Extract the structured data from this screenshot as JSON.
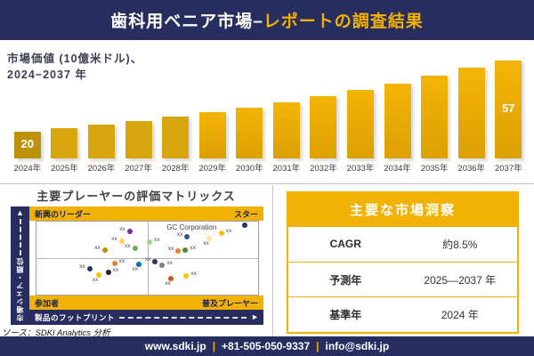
{
  "colors": {
    "navy": "#272d5f",
    "gold": "#f2b205",
    "bar_first": "#bd9109",
    "bar_early": "#d9a60f",
    "bar_late_top": "#f4b406",
    "bar_late_bottom": "#dca004"
  },
  "header": {
    "title_main": "歯科用ベニア市場–",
    "title_accent": "レポートの調査結果"
  },
  "chart": {
    "subtitle_line1": "市場価値 (10億米ドル)、",
    "subtitle_line2": "2024−2037 年"
  },
  "chart_data": [
    {
      "type": "bar",
      "title": "市場価値（10億米ドル）、2024−2037年",
      "categories": [
        "2024年",
        "2025年",
        "2026年",
        "2027年",
        "2028年",
        "2029年",
        "2030年",
        "2031年",
        "2032年",
        "2033年",
        "2034年",
        "2035年",
        "2036年",
        "2037年"
      ],
      "values": [
        20,
        21.7,
        23.5,
        25.5,
        27.7,
        30.1,
        32.6,
        35.4,
        38.4,
        41.7,
        45.2,
        49.0,
        53.2,
        57
      ],
      "shown_labels": {
        "0": "20",
        "13": "57"
      },
      "xlabel": "",
      "ylabel": "10億米ドル",
      "ylim": [
        0,
        60
      ],
      "grid": false,
      "legend": false
    },
    {
      "type": "scatter",
      "title": "主要プレーヤーの評価マトリックス",
      "xlabel": "製品のフットプリント",
      "ylabel": "市場シェア・順位",
      "points": [
        {
          "x": 42.0,
          "y": 13.0,
          "color": "#7030a0",
          "label": "xx",
          "side": "l"
        },
        {
          "x": 38.4,
          "y": 26.8,
          "color": "#ffd34d",
          "label": "xx",
          "side": "l"
        },
        {
          "x": 30.8,
          "y": 39.0,
          "color": "#bf8f00",
          "label": "xx",
          "side": "l"
        },
        {
          "x": 44.4,
          "y": 36.6,
          "color": "#70ad47",
          "label": "xx",
          "side": "l"
        },
        {
          "x": 94.0,
          "y": 5.0,
          "color": "#1f3864",
          "label": "",
          "side": "n"
        },
        {
          "x": 68.0,
          "y": 20.7,
          "color": "#2e5597",
          "label": "xx",
          "side": "l"
        },
        {
          "x": 51.0,
          "y": 28.0,
          "color": "#a9d18e",
          "label": "xx",
          "side": "r"
        },
        {
          "x": 78.0,
          "y": 23.0,
          "color": "#ffe699",
          "label": "xx",
          "side": "b"
        },
        {
          "x": 83.5,
          "y": 16.0,
          "color": "#ffc000",
          "label": "xx",
          "side": "r"
        },
        {
          "x": 64.0,
          "y": 40.0,
          "color": "#ed7d31",
          "label": "xx",
          "side": "l"
        },
        {
          "x": 67.2,
          "y": 39.0,
          "color": "#548235",
          "label": "xx",
          "side": "r"
        },
        {
          "x": 35.2,
          "y": 57.3,
          "color": "#ed7d31",
          "label": "xx",
          "side": "r"
        },
        {
          "x": 46.0,
          "y": 58.5,
          "color": "#0070c0",
          "label": "xx",
          "side": "b"
        },
        {
          "x": 24.0,
          "y": 64.6,
          "color": "#203864",
          "label": "xx",
          "side": "l"
        },
        {
          "x": 32.4,
          "y": 69.5,
          "color": "#262626",
          "label": "xx",
          "side": "r"
        },
        {
          "x": 28.0,
          "y": 73.2,
          "color": "#ffc000",
          "label": "xx",
          "side": "b"
        },
        {
          "x": 53.6,
          "y": 54.9,
          "color": "#203864",
          "label": "xx",
          "side": "l"
        },
        {
          "x": 56.8,
          "y": 59.8,
          "color": "#808080",
          "label": "xx",
          "side": "r"
        },
        {
          "x": 60.8,
          "y": 78.0,
          "color": "#c55a11",
          "label": "xx",
          "side": "b"
        },
        {
          "x": 67.6,
          "y": 74.4,
          "color": "#ffc000",
          "label": "xx",
          "side": "r"
        }
      ]
    }
  ],
  "matrix": {
    "title": "主要プレーヤーの評価マトリックス",
    "quadrants": {
      "top_left": "新興のリーダー",
      "top_right": "スター",
      "bottom_left": "参加者",
      "bottom_right": "普及プレーヤー"
    },
    "x_axis": "製品のフットプリント",
    "y_axis": "市場シェア・順位",
    "y_arrow": "▲",
    "x_arrow": "►",
    "highlight_company": "GC Corporation"
  },
  "insights": {
    "title": "主要な市場洞察",
    "rows": [
      {
        "label": "CAGR",
        "value": "約8.5%"
      },
      {
        "label": "予測年",
        "value": "2025—2037 年"
      },
      {
        "label": "基準年",
        "value": "2024 年"
      }
    ]
  },
  "source": "ソース：SDKI Analytics 分析",
  "footer": {
    "parts": [
      "www.sdki.jp",
      "+81-505-050-9337",
      "info@sdki.jp"
    ],
    "separator": "|"
  }
}
